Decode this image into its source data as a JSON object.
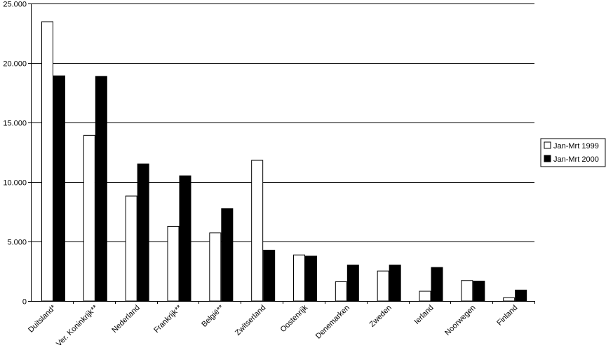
{
  "chart_data": {
    "type": "bar",
    "categories": [
      "Duitsland*",
      "Ver. Koninkrijk**",
      "Nederland",
      "Frankrijk**",
      "België**",
      "Zwitserland",
      "Oostenrijk",
      "Denemarken",
      "Zweden",
      "Ierland",
      "Noorwegen",
      "Finland"
    ],
    "series": [
      {
        "name": "Jan-Mrt 1999",
        "color": "#ffffff",
        "values": [
          23500,
          13950,
          8850,
          6300,
          5750,
          11850,
          3900,
          1650,
          2550,
          850,
          1750,
          300
        ]
      },
      {
        "name": "Jan-Mrt 2000",
        "color": "#000000",
        "values": [
          18950,
          18900,
          11550,
          10550,
          7800,
          4300,
          3800,
          3050,
          3050,
          2850,
          1700,
          950
        ]
      }
    ],
    "ylim": [
      0,
      25000
    ],
    "yticks": [
      0,
      5000,
      10000,
      15000,
      20000,
      25000
    ],
    "ytick_labels": [
      "0",
      "5.000",
      "10.000",
      "15.000",
      "20.000",
      "25.000"
    ],
    "grid": true,
    "legend_position": "right"
  }
}
